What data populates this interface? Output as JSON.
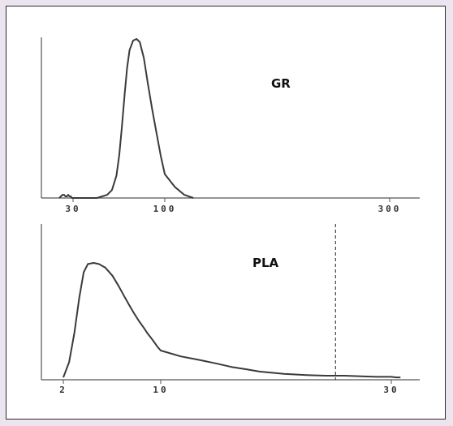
{
  "chart_data": [
    {
      "type": "line",
      "title": "GR",
      "xscale": "log",
      "xlim": [
        20,
        400
      ],
      "xticks": [
        30,
        100,
        300
      ],
      "xtick_labels": [
        "30",
        "100",
        "300"
      ],
      "line_color": "#3a3a3a",
      "series": [
        {
          "x": [
            20,
            21,
            22,
            23,
            24,
            25,
            26,
            27,
            28,
            29,
            30,
            32,
            35,
            38,
            41,
            44,
            47,
            50,
            53,
            55,
            57,
            59,
            61,
            63,
            66,
            69,
            72,
            76,
            80,
            85,
            90,
            95,
            100,
            105,
            110,
            115
          ],
          "y": [
            0,
            1,
            2,
            2,
            1,
            1,
            2,
            1,
            1,
            0,
            0,
            0,
            0,
            0,
            0,
            1,
            2,
            5,
            14,
            27,
            45,
            65,
            82,
            93,
            99,
            100,
            98,
            88,
            72,
            55,
            40,
            26,
            15,
            7,
            2,
            0
          ]
        }
      ]
    },
    {
      "type": "line",
      "title": "PLA",
      "xscale": "log",
      "xlim": [
        1.8,
        40
      ],
      "xticks": [
        2,
        10,
        30
      ],
      "xtick_labels": [
        "2",
        "10",
        "30"
      ],
      "vline_x": 23,
      "line_color": "#3a3a3a",
      "series": [
        {
          "x": [
            2.0,
            2.2,
            2.4,
            2.6,
            2.8,
            3.0,
            3.3,
            3.6,
            4.0,
            4.5,
            5.0,
            5.5,
            6.0,
            6.5,
            7.0,
            7.5,
            8.0,
            8.5,
            9.0,
            9.5,
            10,
            11,
            12,
            13,
            14,
            15,
            16,
            17,
            18,
            19,
            20,
            22,
            24,
            26,
            28,
            30,
            32,
            34
          ],
          "y": [
            2,
            15,
            40,
            70,
            92,
            99,
            100,
            99,
            96,
            89,
            80,
            71,
            63,
            56,
            50,
            45,
            40,
            36,
            32,
            28,
            25,
            20,
            17,
            14,
            11,
            9,
            7,
            6,
            5,
            4.5,
            4,
            3.5,
            3.5,
            3,
            2.5,
            2.5,
            2,
            2
          ]
        }
      ]
    }
  ]
}
